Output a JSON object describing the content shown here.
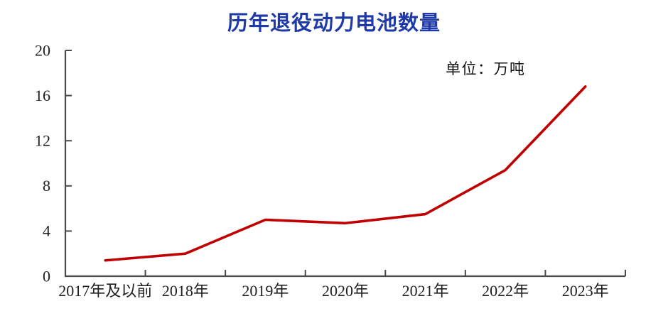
{
  "page": {
    "background": "#ffffff"
  },
  "chart_data": {
    "type": "line",
    "title": "历年退役动力电池数量",
    "title_color": "#1e3aa8",
    "unit_label": "单位：万吨",
    "categories": [
      "2017年及以前",
      "2018年",
      "2019年",
      "2020年",
      "2021年",
      "2022年",
      "2023年"
    ],
    "values": [
      1.4,
      2.0,
      5.0,
      4.7,
      5.5,
      9.4,
      16.8
    ],
    "line_color": "#c00000",
    "ylim": [
      0,
      20
    ],
    "yticks": [
      0,
      4,
      8,
      12,
      16,
      20
    ],
    "xlabel": "",
    "ylabel": "",
    "grid": false,
    "legend": "none",
    "axis_color": "#4a4a4a",
    "tick_label_color": "#1f1f1f"
  }
}
